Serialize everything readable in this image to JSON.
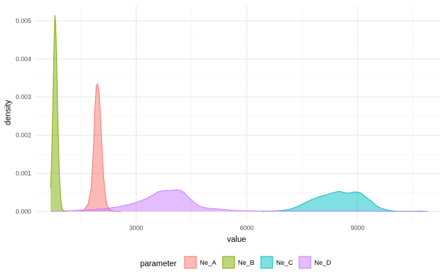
{
  "chart_data": {
    "type": "area",
    "xlabel": "value",
    "ylabel": "density",
    "xlim": [
      250,
      11250
    ],
    "ylim": [
      -0.00025,
      0.0054
    ],
    "x_ticks": [
      3000,
      6000,
      9000
    ],
    "x_tick_labels": [
      "3000",
      "6000",
      "9000"
    ],
    "y_ticks": [
      0,
      0.001,
      0.002,
      0.003,
      0.004,
      0.005
    ],
    "y_tick_labels": [
      "0.000",
      "0.001",
      "0.002",
      "0.003",
      "0.004",
      "0.005"
    ],
    "grid": true,
    "legend": {
      "title": "parameter",
      "placement": "bottom",
      "entries": [
        "Ne_A",
        "Ne_B",
        "Ne_C",
        "Ne_D"
      ]
    },
    "series": [
      {
        "name": "Ne_A",
        "color": "#F8766D",
        "x": [
          1480,
          1600,
          1700,
          1780,
          1840,
          1880,
          1920,
          1960,
          2000,
          2040,
          2080,
          2120,
          2160,
          2200,
          2260,
          2320,
          2400,
          2500,
          2600
        ],
        "y": [
          0,
          5e-05,
          0.0002,
          0.0006,
          0.0016,
          0.0027,
          0.0033,
          0.00335,
          0.0031,
          0.0024,
          0.0016,
          0.0009,
          0.0005,
          0.0002,
          8e-05,
          3e-05,
          1e-05,
          0,
          0
        ]
      },
      {
        "name": "Ne_B",
        "color": "#7CAE00",
        "x": [
          680,
          700,
          720,
          740,
          760,
          780,
          800,
          820,
          840,
          860,
          880,
          900,
          920,
          940,
          960,
          980,
          1000,
          1040,
          1080,
          1120
        ],
        "y": [
          0.0006,
          0.0011,
          0.0018,
          0.0027,
          0.0037,
          0.0046,
          0.00515,
          0.0049,
          0.0042,
          0.0033,
          0.0024,
          0.0016,
          0.001,
          0.0006,
          0.0003,
          0.00015,
          6e-05,
          1e-05,
          0,
          0
        ]
      },
      {
        "name": "Ne_C",
        "color": "#00BFC4",
        "x": [
          6400,
          6700,
          7000,
          7200,
          7400,
          7600,
          7800,
          8000,
          8200,
          8400,
          8500,
          8600,
          8700,
          8800,
          8900,
          9000,
          9100,
          9200,
          9300,
          9400,
          9500,
          9600,
          9800,
          10000,
          10200,
          10400,
          10700,
          10900
        ],
        "y": [
          0,
          1e-05,
          3e-05,
          7e-05,
          0.00014,
          0.00024,
          0.00033,
          0.0004,
          0.00045,
          0.00051,
          0.00053,
          0.00051,
          0.00048,
          0.00049,
          0.00051,
          0.00051,
          0.00048,
          0.0004,
          0.00032,
          0.00025,
          0.00016,
          0.0001,
          4e-05,
          1e-05,
          0,
          0,
          1e-05,
          0
        ]
      },
      {
        "name": "Ne_D",
        "color": "#C77CFF",
        "x": [
          700,
          1000,
          1400,
          1800,
          2200,
          2500,
          2800,
          3100,
          3300,
          3500,
          3600,
          3700,
          3800,
          3900,
          4000,
          4100,
          4200,
          4300,
          4400,
          4500,
          4600,
          4700,
          4800,
          5000,
          5200,
          5400,
          5600,
          5800,
          6000,
          6300,
          6600,
          7000,
          7600,
          8200,
          9000,
          9800,
          10400,
          10900
        ],
        "y": [
          0,
          1e-05,
          3e-05,
          5e-05,
          8e-05,
          0.00012,
          0.00018,
          0.00027,
          0.00035,
          0.00046,
          0.00052,
          0.00054,
          0.00055,
          0.00055,
          0.00056,
          0.00057,
          0.00055,
          0.0005,
          0.0004,
          0.0003,
          0.00022,
          0.00015,
          0.00011,
          8e-05,
          7e-05,
          5e-05,
          3e-05,
          2e-05,
          2e-05,
          1e-05,
          1e-05,
          1e-05,
          1e-05,
          1e-05,
          1e-05,
          0,
          0,
          0
        ]
      }
    ]
  }
}
